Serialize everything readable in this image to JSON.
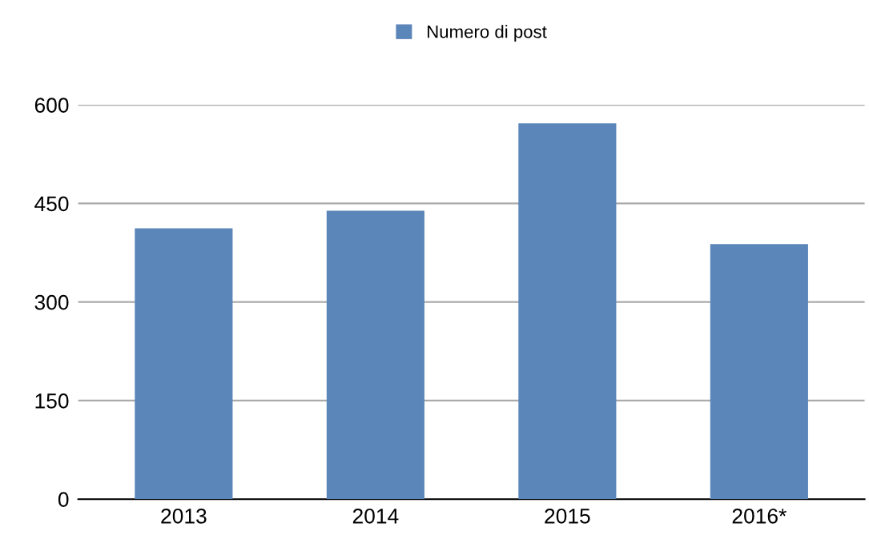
{
  "chart_data": {
    "type": "bar",
    "categories": [
      "2013",
      "2014",
      "2015",
      "2016*"
    ],
    "series": [
      {
        "name": "Numero di post",
        "color": "#5b86b9",
        "values": [
          412,
          439,
          572,
          388
        ]
      }
    ],
    "ylim": [
      0,
      600
    ],
    "yticks": [
      0,
      150,
      300,
      450,
      600
    ],
    "grid": "y",
    "legend": "top"
  }
}
